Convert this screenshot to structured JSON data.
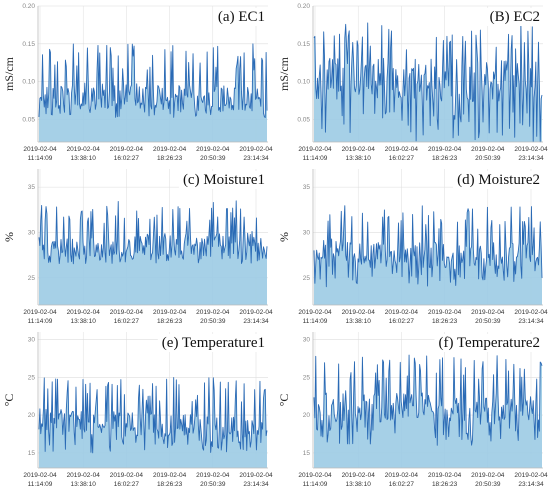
{
  "chart_data": [
    {
      "type": "area",
      "title": "(a) EC1",
      "ylabel": "mS/cm",
      "ylim": [
        0.02,
        0.2
      ],
      "y_ticks": [
        "0.20",
        "0.15",
        "0.10",
        "0.05"
      ],
      "y_tick_values": [
        0.2,
        0.15,
        0.1,
        0.05
      ],
      "x_ticks": [
        [
          "2019-02-04",
          "11:14:09"
        ],
        [
          "2019-02-04",
          "13:38:10"
        ],
        [
          "2019-02-04",
          "16:02:27"
        ],
        [
          "2019-02-04",
          "18:26:23"
        ],
        [
          "2019-02-04",
          "20:50:39"
        ],
        [
          "2019-02-04",
          "23:14:34"
        ]
      ],
      "series": [
        {
          "summary": {
            "baseline": 0.09,
            "low": 0.05,
            "high": 0.15,
            "start": 0.08,
            "end": 0.06
          }
        }
      ],
      "grid": true
    },
    {
      "type": "area",
      "title": "(B) EC2",
      "ylabel": "mS/cm",
      "ylim": [
        0.02,
        0.2
      ],
      "y_ticks": [
        "0.20",
        "0.15",
        "0.10",
        "0.05"
      ],
      "y_tick_values": [
        0.2,
        0.15,
        0.1,
        0.05
      ],
      "x_ticks": [
        [
          "2019-02-04",
          "11:14:09"
        ],
        [
          "2019-02-04",
          "13:38:10"
        ],
        [
          "2019-02-04",
          "16:02:27"
        ],
        [
          "2019-02-04",
          "18:26:23"
        ],
        [
          "2019-02-04",
          "20:50:39"
        ],
        [
          "2019-02-04",
          "23:14:34"
        ]
      ],
      "series": [
        {
          "summary": {
            "baseline": 0.1,
            "low": 0.02,
            "high": 0.18,
            "start": 0.11,
            "end": 0.1
          }
        }
      ],
      "grid": true
    },
    {
      "type": "area",
      "title": "(c) Moisture1",
      "ylabel": "%",
      "ylim": [
        22,
        37
      ],
      "y_ticks": [
        "35",
        "30",
        "25"
      ],
      "y_tick_values": [
        35,
        30,
        25
      ],
      "x_ticks": [
        [
          "2019-02-04",
          "11:14:09"
        ],
        [
          "2019-02-04",
          "13:38:10"
        ],
        [
          "2019-02-04",
          "16:02:27"
        ],
        [
          "2019-02-04",
          "18:26:23"
        ],
        [
          "2019-02-04",
          "20:50:39"
        ],
        [
          "2019-02-04",
          "23:14:34"
        ]
      ],
      "series": [
        {
          "summary": {
            "baseline": 29,
            "low": 26.5,
            "high": 33.5,
            "start": 27.5,
            "end": 29
          }
        }
      ],
      "grid": true
    },
    {
      "type": "area",
      "title": "(d) Moisture2",
      "ylabel": "%",
      "ylim": [
        22,
        37
      ],
      "y_ticks": [
        "35",
        "30",
        "25"
      ],
      "y_tick_values": [
        35,
        30,
        25
      ],
      "x_ticks": [
        [
          "2019-02-04",
          "11:14:09"
        ],
        [
          "2019-02-04",
          "13:38:10"
        ],
        [
          "2019-02-04",
          "16:02:27"
        ],
        [
          "2019-02-04",
          "18:26:23"
        ],
        [
          "2019-02-04",
          "20:50:39"
        ],
        [
          "2019-02-04",
          "23:14:34"
        ]
      ],
      "series": [
        {
          "summary": {
            "baseline": 27.5,
            "low": 24,
            "high": 33,
            "start": 28,
            "end": 27
          }
        }
      ],
      "grid": true
    },
    {
      "type": "area",
      "title": "(e) Temperature1",
      "ylabel": "°C",
      "ylim": [
        13,
        31
      ],
      "y_ticks": [
        "30",
        "25",
        "20",
        "15"
      ],
      "y_tick_values": [
        30,
        25,
        20,
        15
      ],
      "x_ticks": [
        [
          "2019-02-04",
          "11:14:09"
        ],
        [
          "2019-02-04",
          "13:38:10"
        ],
        [
          "2019-02-04",
          "16:02:27"
        ],
        [
          "2019-02-04",
          "18:26:23"
        ],
        [
          "2019-02-04",
          "20:50:39"
        ],
        [
          "2019-02-04",
          "23:14:34"
        ]
      ],
      "series": [
        {
          "summary": {
            "baseline": 19,
            "low": 15,
            "high": 25,
            "start": 19.5,
            "end": 17
          }
        }
      ],
      "grid": true
    },
    {
      "type": "area",
      "title": "(f) Temperature2",
      "ylabel": "°C",
      "ylim": [
        13,
        31
      ],
      "y_ticks": [
        "30",
        "25",
        "20",
        "15"
      ],
      "y_tick_values": [
        30,
        25,
        20,
        15
      ],
      "x_ticks": [
        [
          "2019-02-04",
          "11:14:09"
        ],
        [
          "2019-02-04",
          "13:38:10"
        ],
        [
          "2019-02-04",
          "16:02:27"
        ],
        [
          "2019-02-04",
          "18:26:23"
        ],
        [
          "2019-02-04",
          "20:50:39"
        ],
        [
          "2019-02-04",
          "23:14:34"
        ]
      ],
      "series": [
        {
          "summary": {
            "baseline": 21.5,
            "low": 16,
            "high": 28,
            "start": 21,
            "end": 20
          }
        }
      ],
      "grid": true
    }
  ],
  "colors": {
    "fill": "#9ccbe4",
    "line": "#2a6ab5",
    "grid": "#dddddd",
    "axis": "#bbbbbb"
  }
}
